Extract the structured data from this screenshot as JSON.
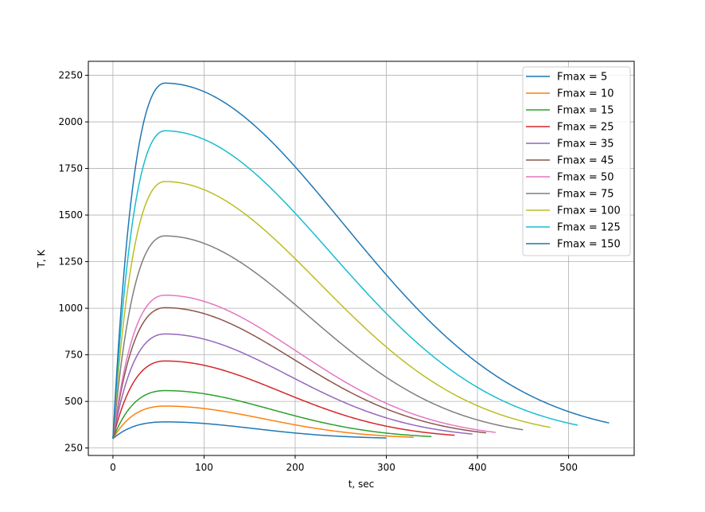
{
  "chart_data": {
    "type": "line",
    "title": "",
    "xlabel": "t, sec",
    "ylabel": "T, K",
    "xlim": [
      -27,
      572
    ],
    "ylim": [
      210,
      2325
    ],
    "xticks": [
      0,
      100,
      200,
      300,
      400,
      500
    ],
    "yticks": [
      250,
      500,
      750,
      1000,
      1250,
      1500,
      1750,
      2000,
      2250
    ],
    "grid": true,
    "legend_position": "top-right",
    "baseline_T": 300,
    "peak_t": 57,
    "series": [
      {
        "name": "Fmax = 5",
        "color": "#1f77b4",
        "peak": 390,
        "t_end": 300
      },
      {
        "name": "Fmax = 10",
        "color": "#ff7f0e",
        "peak": 475,
        "t_end": 330
      },
      {
        "name": "Fmax = 15",
        "color": "#2ca02c",
        "peak": 558,
        "t_end": 350
      },
      {
        "name": "Fmax = 25",
        "color": "#d62728",
        "peak": 717,
        "t_end": 375
      },
      {
        "name": "Fmax = 35",
        "color": "#9467bd",
        "peak": 862,
        "t_end": 395
      },
      {
        "name": "Fmax = 45",
        "color": "#8c564b",
        "peak": 1003,
        "t_end": 410
      },
      {
        "name": "Fmax = 50",
        "color": "#e377c2",
        "peak": 1070,
        "t_end": 420
      },
      {
        "name": "Fmax = 75",
        "color": "#7f7f7f",
        "peak": 1388,
        "t_end": 450
      },
      {
        "name": "Fmax = 100",
        "color": "#bcbd22",
        "peak": 1680,
        "t_end": 480
      },
      {
        "name": "Fmax = 125",
        "color": "#17becf",
        "peak": 1952,
        "t_end": 510
      },
      {
        "name": "Fmax = 150",
        "color": "#1f77b4",
        "peak": 2208,
        "t_end": 545
      }
    ]
  }
}
